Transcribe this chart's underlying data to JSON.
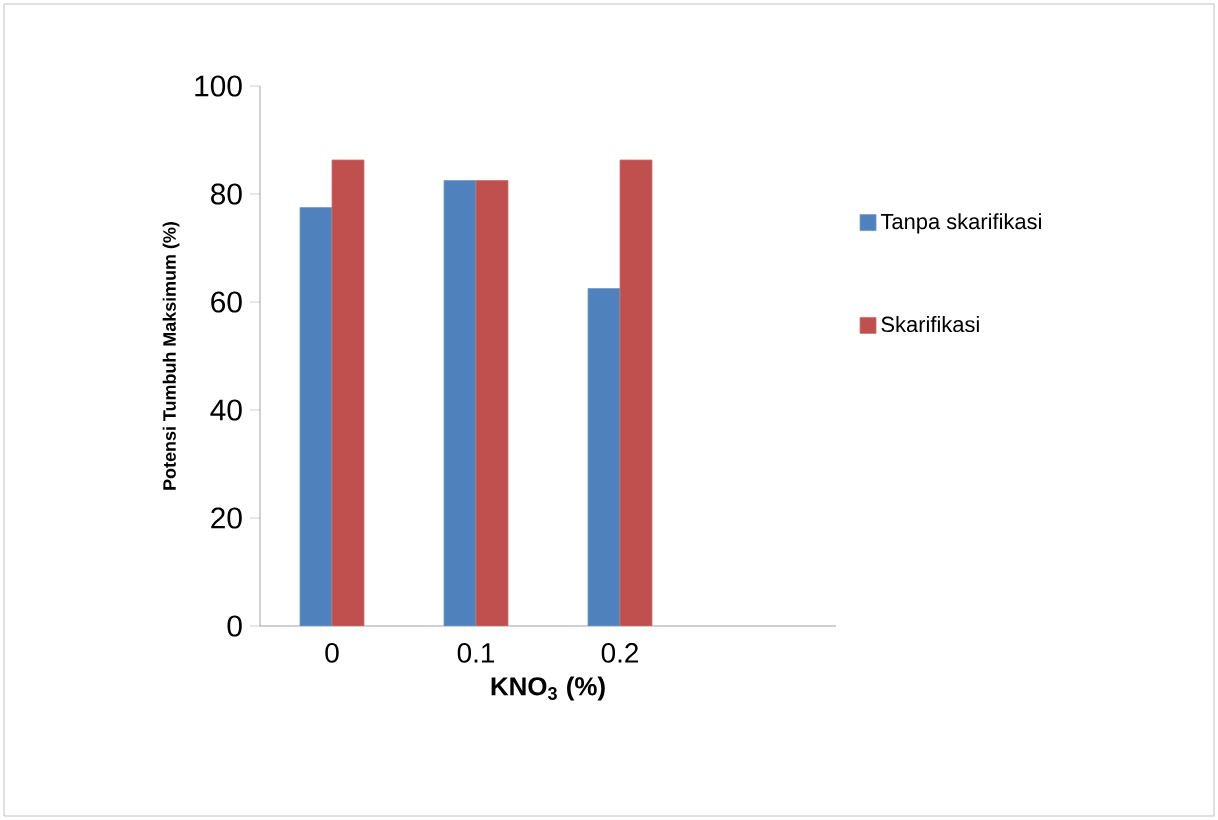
{
  "chart_data": {
    "type": "bar",
    "xlabel": "KNO$_{3}$ (%)",
    "ylabel": "Potensi Tumbuh Maksimum (%)",
    "categories": [
      "0",
      "0.1",
      "0.2",
      null
    ],
    "series": [
      {
        "name": "Tanpa skarifikasi",
        "color": "#4f81bd",
        "values": [
          77.5,
          82.5,
          62.5,
          null
        ]
      },
      {
        "name": "Skarifikasi",
        "color": "#c0504d",
        "values": [
          86.3,
          82.5,
          86.3,
          null
        ]
      }
    ],
    "ylim": [
      0,
      100
    ],
    "yticks": [
      0,
      20,
      40,
      60,
      80,
      100
    ],
    "grid": false,
    "legend": "right"
  }
}
